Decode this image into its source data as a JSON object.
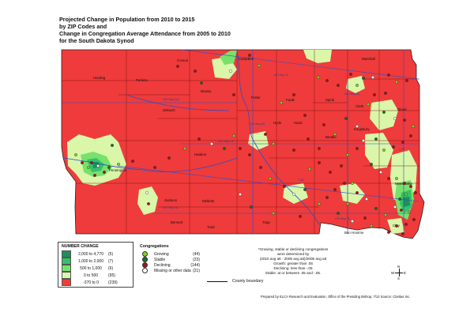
{
  "title": {
    "line1": "Projected Change in Population from 2010 to 2015",
    "line2": "by ZIP Codes and",
    "line3": "Change in Congregation Average Attendance from 2005 to 2010",
    "line4": "for the South Dakota Synod"
  },
  "colors": {
    "decline": "#ef3b3b",
    "grow_low": "#d6f5a8",
    "grow_mid": "#a9ec7c",
    "grow_high": "#4cd44c",
    "grow_top": "#1fa86b",
    "road": "#2850c8",
    "county": "#7a1010"
  },
  "pop_legend": {
    "heading": "NUMBER CHANGE",
    "rows": [
      {
        "from": "2,000",
        "to": "4,770",
        "count": "(5)",
        "color": "#1f8f5a"
      },
      {
        "from": "1,000",
        "to": "2,000",
        "count": "(7)",
        "color": "#35c06a"
      },
      {
        "from": "500",
        "to": "1,000",
        "count": "(6)",
        "color": "#77e16b"
      },
      {
        "from": "0",
        "to": "500",
        "count": "(95)",
        "color": "#d9f6a9"
      },
      {
        "from": "-370",
        "to": "0",
        "count": "(239)",
        "color": "#ef3b3b"
      }
    ],
    "to_word": "to"
  },
  "cong_legend": {
    "heading": "Congregations",
    "rows": [
      {
        "label": "Growing",
        "count": "(44)",
        "color": "#7fd61e",
        "icon": "growing-dot-icon"
      },
      {
        "label": "Stable",
        "count": "(23)",
        "color": "#1e6b1e",
        "icon": "stable-dot-icon"
      },
      {
        "label": "Declining",
        "count": "(144)",
        "color": "#a3131a",
        "icon": "declining-dot-icon"
      },
      {
        "label": "Missing or other data",
        "count": "(21)",
        "color": "#ffffff",
        "icon": "missing-dot-icon"
      }
    ],
    "county_boundary": "County boundary"
  },
  "notes": {
    "l1": "*Growing, stable or declining congregations",
    "l2": "were determined by",
    "l3": "(2010 avg att - 2005 avg att)/2005 avg att",
    "l4": "Growth: greater than .05",
    "l5": "Declining: less than -.05",
    "l6": "Stable: at or between .05 and -.05."
  },
  "prepared_by": "Prepared by ELCA Research and Evaluation, Office of the Presiding Bishop, 7/12 Source: Claritas Inc.",
  "compass": {
    "n": "N",
    "s": "S",
    "w": "W",
    "e": "E"
  },
  "places": [
    {
      "name": "Corson"
    },
    {
      "name": "Campbell"
    },
    {
      "name": "Marshall"
    },
    {
      "name": "Harding"
    },
    {
      "name": "Perkins"
    },
    {
      "name": "Dewey"
    },
    {
      "name": "Potter"
    },
    {
      "name": "Faulk"
    },
    {
      "name": "Spink"
    },
    {
      "name": "Clark"
    },
    {
      "name": "Ziebach"
    },
    {
      "name": "Hyde"
    },
    {
      "name": "Hand"
    },
    {
      "name": "Beadle"
    },
    {
      "name": "Kingsbury"
    },
    {
      "name": "Pennington"
    },
    {
      "name": "Haakon"
    },
    {
      "name": "Jackson"
    },
    {
      "name": "Mellette"
    },
    {
      "name": "Bennett"
    },
    {
      "name": "Todd"
    },
    {
      "name": "Tripp"
    },
    {
      "name": "Bon Homme"
    },
    {
      "name": "Clay"
    },
    {
      "name": "Minnehaha"
    },
    {
      "name": "Deuel"
    }
  ],
  "highways": [
    {
      "name": "US Hwy 12"
    },
    {
      "name": "US Hwy 212"
    },
    {
      "name": "US Hwy 14"
    },
    {
      "name": "US Hwy 18"
    },
    {
      "name": "US Hwy 18"
    },
    {
      "name": "US Hwy 81"
    },
    {
      "name": "US Hwy 83"
    },
    {
      "name": "I-90"
    },
    {
      "name": "I-29"
    }
  ]
}
